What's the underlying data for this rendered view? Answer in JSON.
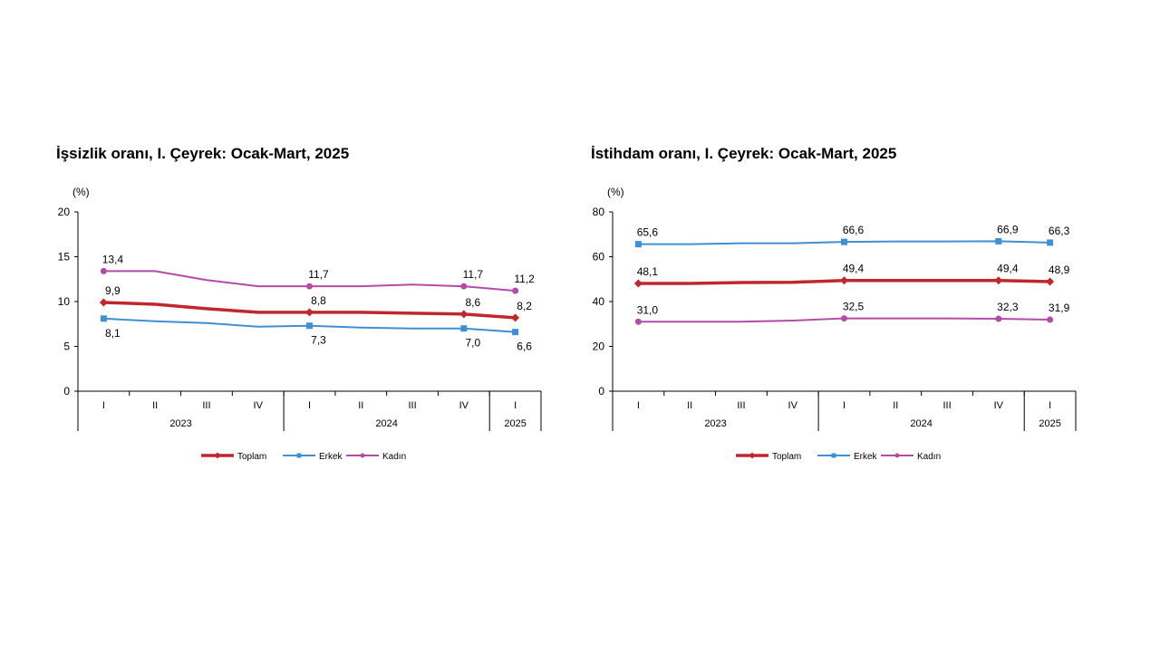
{
  "chart_data": [
    {
      "type": "line",
      "title": "İşsizlik oranı, I. Çeyrek: Ocak-Mart, 2025",
      "ylabel": "(%)",
      "ylim": [
        0,
        20
      ],
      "yticks": [
        0,
        5,
        10,
        15,
        20
      ],
      "grid": false,
      "legend_position": "bottom-center",
      "categories": [
        "I",
        "II",
        "III",
        "IV",
        "I",
        "II",
        "III",
        "IV",
        "I"
      ],
      "year_groups": [
        {
          "label": "2023",
          "count": 4
        },
        {
          "label": "2024",
          "count": 4
        },
        {
          "label": "2025",
          "count": 1
        }
      ],
      "labeled_points": [
        0,
        4,
        7,
        8
      ],
      "series": [
        {
          "name": "Kadın",
          "color": "#b44ba6",
          "marker": "circle",
          "values": [
            13.4,
            13.4,
            12.4,
            11.7,
            11.7,
            11.7,
            11.9,
            11.7,
            11.2
          ],
          "labels": [
            "13,4",
            "11,7",
            "11,7",
            "11,2"
          ],
          "label_pos": "above"
        },
        {
          "name": "Toplam",
          "color": "#c0272d",
          "marker": "diamond",
          "values": [
            9.9,
            9.7,
            9.2,
            8.8,
            8.8,
            8.8,
            8.7,
            8.6,
            8.2
          ],
          "labels": [
            "9,9",
            "8,8",
            "8,6",
            "8,2"
          ],
          "label_pos": "above"
        },
        {
          "name": "Erkek",
          "color": "#3f8fd2",
          "marker": "square",
          "values": [
            8.1,
            7.8,
            7.6,
            7.2,
            7.3,
            7.1,
            7.0,
            7.0,
            6.6
          ],
          "labels": [
            "8,1",
            "7,3",
            "7,0",
            "6,6"
          ],
          "label_pos": "below"
        }
      ],
      "legend": [
        "Toplam",
        "Erkek",
        "Kadın"
      ]
    },
    {
      "type": "line",
      "title": "İstihdam oranı, I. Çeyrek: Ocak-Mart, 2025",
      "ylabel": "(%)",
      "ylim": [
        0,
        80
      ],
      "yticks": [
        0,
        20,
        40,
        60,
        80
      ],
      "grid": false,
      "legend_position": "bottom-center",
      "categories": [
        "I",
        "II",
        "III",
        "IV",
        "I",
        "II",
        "III",
        "IV",
        "I"
      ],
      "year_groups": [
        {
          "label": "2023",
          "count": 4
        },
        {
          "label": "2024",
          "count": 4
        },
        {
          "label": "2025",
          "count": 1
        }
      ],
      "labeled_points": [
        0,
        4,
        7,
        8
      ],
      "series": [
        {
          "name": "Erkek",
          "color": "#3f8fd2",
          "marker": "square",
          "values": [
            65.6,
            65.6,
            66.0,
            66.0,
            66.6,
            66.8,
            66.8,
            66.9,
            66.3
          ],
          "labels": [
            "65,6",
            "66,6",
            "66,9",
            "66,3"
          ],
          "label_pos": "above"
        },
        {
          "name": "Toplam",
          "color": "#c0272d",
          "marker": "diamond",
          "values": [
            48.1,
            48.1,
            48.5,
            48.6,
            49.4,
            49.4,
            49.4,
            49.4,
            48.9
          ],
          "labels": [
            "48,1",
            "49,4",
            "49,4",
            "48,9"
          ],
          "label_pos": "above"
        },
        {
          "name": "Kadın",
          "color": "#b44ba6",
          "marker": "circle",
          "values": [
            31.0,
            31.0,
            31.0,
            31.5,
            32.5,
            32.5,
            32.5,
            32.3,
            31.9
          ],
          "labels": [
            "31,0",
            "32,5",
            "32,3",
            "31,9"
          ],
          "label_pos": "above"
        }
      ],
      "legend": [
        "Toplam",
        "Erkek",
        "Kadın"
      ]
    }
  ]
}
